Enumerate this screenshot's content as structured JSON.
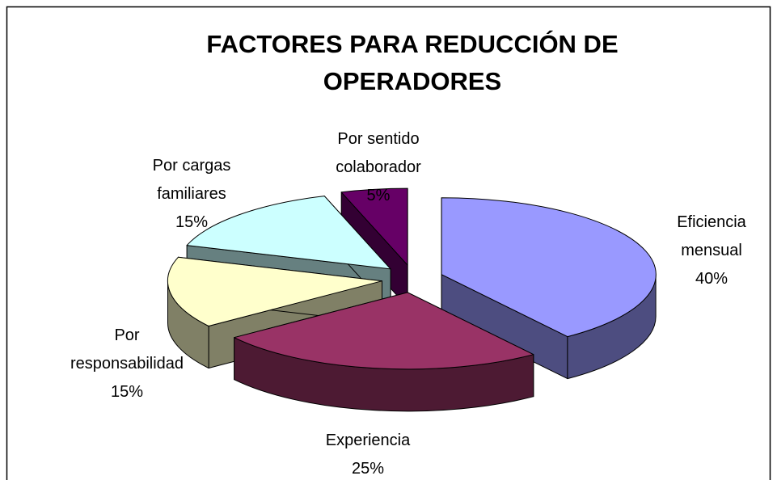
{
  "chart_data": {
    "type": "pie",
    "title": "FACTORES PARA REDUCCIÓN DE OPERADORES",
    "categories": [
      "Eficiencia mensual",
      "Experiencia",
      "Por responsabilidad",
      "Por cargas familiares",
      "Por sentido colaborador"
    ],
    "values": [
      40,
      25,
      15,
      15,
      5
    ],
    "value_labels": [
      "40%",
      "25%",
      "15%",
      "15%",
      "5%"
    ],
    "colors": [
      "#9999ff",
      "#993366",
      "#ffffcc",
      "#ccffff",
      "#660066"
    ]
  }
}
